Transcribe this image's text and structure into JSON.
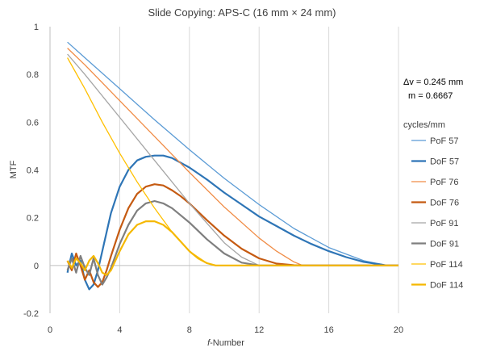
{
  "chart_data": {
    "type": "line",
    "title": "Slide Copying: APS-C (16 mm × 24 mm)",
    "xlabel_prefix": "f",
    "xlabel_rest": "-Number",
    "ylabel": "MTF",
    "xlim": [
      0,
      20
    ],
    "ylim": [
      -0.2,
      1
    ],
    "xticks": [
      0,
      4,
      8,
      12,
      16,
      20
    ],
    "yticks": [
      -0.2,
      0,
      0.2,
      0.4,
      0.6,
      0.8,
      1
    ],
    "grid": "vertical",
    "legend_title": "cycles/mm",
    "legend_position": "right",
    "annotation_line1": "Δv = 0.245 mm",
    "annotation_line2": "m = 0.6667",
    "series": [
      {
        "name": "PoF 57",
        "color": "#5b9bd5",
        "width": 1.3,
        "x": [
          1,
          2,
          4,
          6,
          8,
          10,
          12,
          14,
          16,
          18,
          19.3,
          20
        ],
        "y": [
          0.935,
          0.87,
          0.74,
          0.61,
          0.485,
          0.365,
          0.255,
          0.155,
          0.075,
          0.02,
          0,
          0
        ]
      },
      {
        "name": "DoF 57",
        "color": "#2e75b6",
        "width": 2.2,
        "x": [
          1,
          1.25,
          1.5,
          1.75,
          2,
          2.25,
          2.5,
          2.75,
          3,
          3.25,
          3.5,
          4,
          4.5,
          5,
          5.5,
          6,
          6.5,
          7,
          8,
          9,
          10,
          11,
          12,
          13,
          14,
          15,
          16,
          17,
          18,
          19,
          19.3,
          20
        ],
        "y": [
          -0.03,
          0.05,
          0.0,
          0.02,
          -0.06,
          -0.1,
          -0.08,
          -0.02,
          0.06,
          0.14,
          0.22,
          0.33,
          0.4,
          0.44,
          0.455,
          0.46,
          0.46,
          0.45,
          0.41,
          0.36,
          0.305,
          0.255,
          0.205,
          0.165,
          0.125,
          0.09,
          0.06,
          0.035,
          0.015,
          0.004,
          0,
          0
        ]
      },
      {
        "name": "PoF 76",
        "color": "#f08c46",
        "width": 1.3,
        "x": [
          1,
          2,
          4,
          6,
          8,
          10,
          12,
          13,
          14,
          14.5,
          20
        ],
        "y": [
          0.91,
          0.84,
          0.69,
          0.54,
          0.39,
          0.245,
          0.115,
          0.06,
          0.015,
          0,
          0
        ]
      },
      {
        "name": "DoF 76",
        "color": "#c55a11",
        "width": 2.2,
        "x": [
          1,
          1.25,
          1.5,
          1.75,
          2,
          2.25,
          2.5,
          2.75,
          3,
          3.25,
          3.5,
          4,
          4.5,
          5,
          5.5,
          6,
          6.5,
          7,
          7.5,
          8,
          9,
          10,
          11,
          12,
          13,
          14,
          14.5,
          20
        ],
        "y": [
          0.02,
          -0.02,
          0.05,
          0.0,
          -0.06,
          -0.02,
          -0.07,
          -0.09,
          -0.07,
          -0.02,
          0.04,
          0.15,
          0.24,
          0.3,
          0.33,
          0.34,
          0.335,
          0.315,
          0.29,
          0.26,
          0.19,
          0.125,
          0.07,
          0.03,
          0.008,
          0.001,
          0,
          0
        ]
      },
      {
        "name": "PoF 91",
        "color": "#a5a5a5",
        "width": 1.3,
        "x": [
          1,
          2,
          4,
          6,
          8,
          10,
          11,
          12,
          20
        ],
        "y": [
          0.885,
          0.8,
          0.62,
          0.44,
          0.26,
          0.095,
          0.035,
          0,
          0
        ]
      },
      {
        "name": "DoF 91",
        "color": "#7f7f7f",
        "width": 2.2,
        "x": [
          1,
          1.25,
          1.5,
          1.75,
          2,
          2.25,
          2.5,
          2.75,
          3,
          3.25,
          3.5,
          4,
          4.5,
          5,
          5.5,
          6,
          6.5,
          7,
          7.5,
          8,
          9,
          10,
          11,
          12,
          20
        ],
        "y": [
          -0.02,
          0.03,
          -0.03,
          0.04,
          -0.01,
          -0.04,
          0.03,
          -0.04,
          -0.08,
          -0.05,
          -0.01,
          0.09,
          0.17,
          0.23,
          0.26,
          0.27,
          0.26,
          0.24,
          0.21,
          0.18,
          0.11,
          0.05,
          0.012,
          0,
          0
        ]
      },
      {
        "name": "PoF 114",
        "color": "#ffc000",
        "width": 1.3,
        "x": [
          1,
          2,
          3,
          4,
          5,
          6,
          7,
          8,
          9,
          9.5,
          20
        ],
        "y": [
          0.87,
          0.74,
          0.6,
          0.47,
          0.35,
          0.24,
          0.14,
          0.06,
          0.01,
          0,
          0
        ]
      },
      {
        "name": "DoF 114",
        "color": "#f5b800",
        "width": 2.2,
        "x": [
          1,
          1.25,
          1.5,
          1.75,
          2,
          2.25,
          2.5,
          2.75,
          3,
          3.25,
          3.5,
          4,
          4.5,
          5,
          5.5,
          6,
          6.5,
          7,
          7.5,
          8,
          8.5,
          9,
          9.5,
          20
        ],
        "y": [
          0.02,
          -0.01,
          0.03,
          0.01,
          -0.02,
          0.02,
          0.04,
          0.01,
          -0.03,
          -0.04,
          -0.02,
          0.06,
          0.13,
          0.17,
          0.185,
          0.185,
          0.17,
          0.14,
          0.1,
          0.06,
          0.03,
          0.01,
          0,
          0
        ]
      }
    ]
  }
}
